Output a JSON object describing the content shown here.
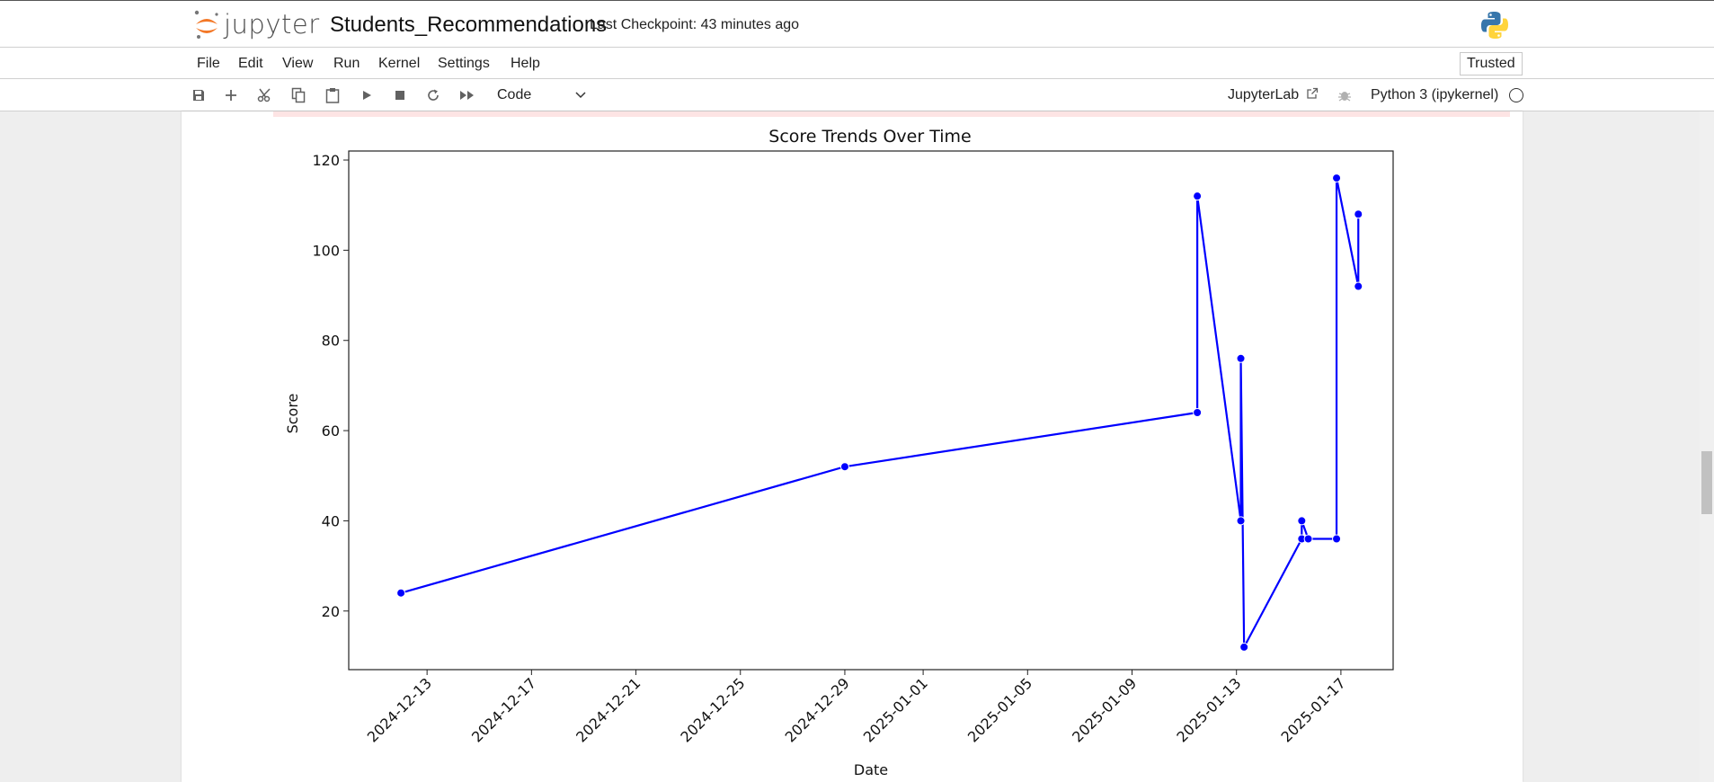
{
  "header": {
    "logo_text": "jupyter",
    "notebook_title": "Students_Recommendations",
    "checkpoint": "Last Checkpoint: 43 minutes ago"
  },
  "menu": {
    "items": [
      "File",
      "Edit",
      "View",
      "Run",
      "Kernel",
      "Settings",
      "Help"
    ],
    "trusted": "Trusted"
  },
  "toolbar": {
    "buttons": [
      "save-icon",
      "add-cell-icon",
      "cut-icon",
      "copy-icon",
      "paste-icon",
      "run-icon",
      "stop-icon",
      "restart-icon",
      "fast-forward-icon"
    ],
    "cell_type": "Code",
    "jupyterlab": "JupyterLab",
    "kernel": "Python 3 (ipykernel)"
  },
  "chart_data": {
    "type": "line",
    "title": "Score Trends Over Time",
    "xlabel": "Date",
    "ylabel": "Score",
    "color": "#0000ff",
    "x_ticks": [
      "2024-12-13",
      "2024-12-17",
      "2024-12-21",
      "2024-12-25",
      "2024-12-29",
      "2025-01-01",
      "2025-01-05",
      "2025-01-09",
      "2025-01-13",
      "2025-01-17"
    ],
    "y_ticks": [
      20,
      40,
      60,
      80,
      100,
      120
    ],
    "ylim": [
      7,
      122
    ],
    "xlim": [
      "2024-12-10",
      "2025-01-19"
    ],
    "points": [
      {
        "x": "2024-12-12",
        "y": 24
      },
      {
        "x": "2024-12-29",
        "y": 52
      },
      {
        "x": "2025-01-11 12:00",
        "y": 64
      },
      {
        "x": "2025-01-11 12:00",
        "y": 112
      },
      {
        "x": "2025-01-13 04:00",
        "y": 40
      },
      {
        "x": "2025-01-13 04:00",
        "y": 76
      },
      {
        "x": "2025-01-13 07:00",
        "y": 12
      },
      {
        "x": "2025-01-15 12:00",
        "y": 36
      },
      {
        "x": "2025-01-15 12:00",
        "y": 40
      },
      {
        "x": "2025-01-15 18:00",
        "y": 36
      },
      {
        "x": "2025-01-16 20:00",
        "y": 36
      },
      {
        "x": "2025-01-16 20:00",
        "y": 116
      },
      {
        "x": "2025-01-17 16:00",
        "y": 92
      },
      {
        "x": "2025-01-17 16:00",
        "y": 108
      }
    ]
  }
}
